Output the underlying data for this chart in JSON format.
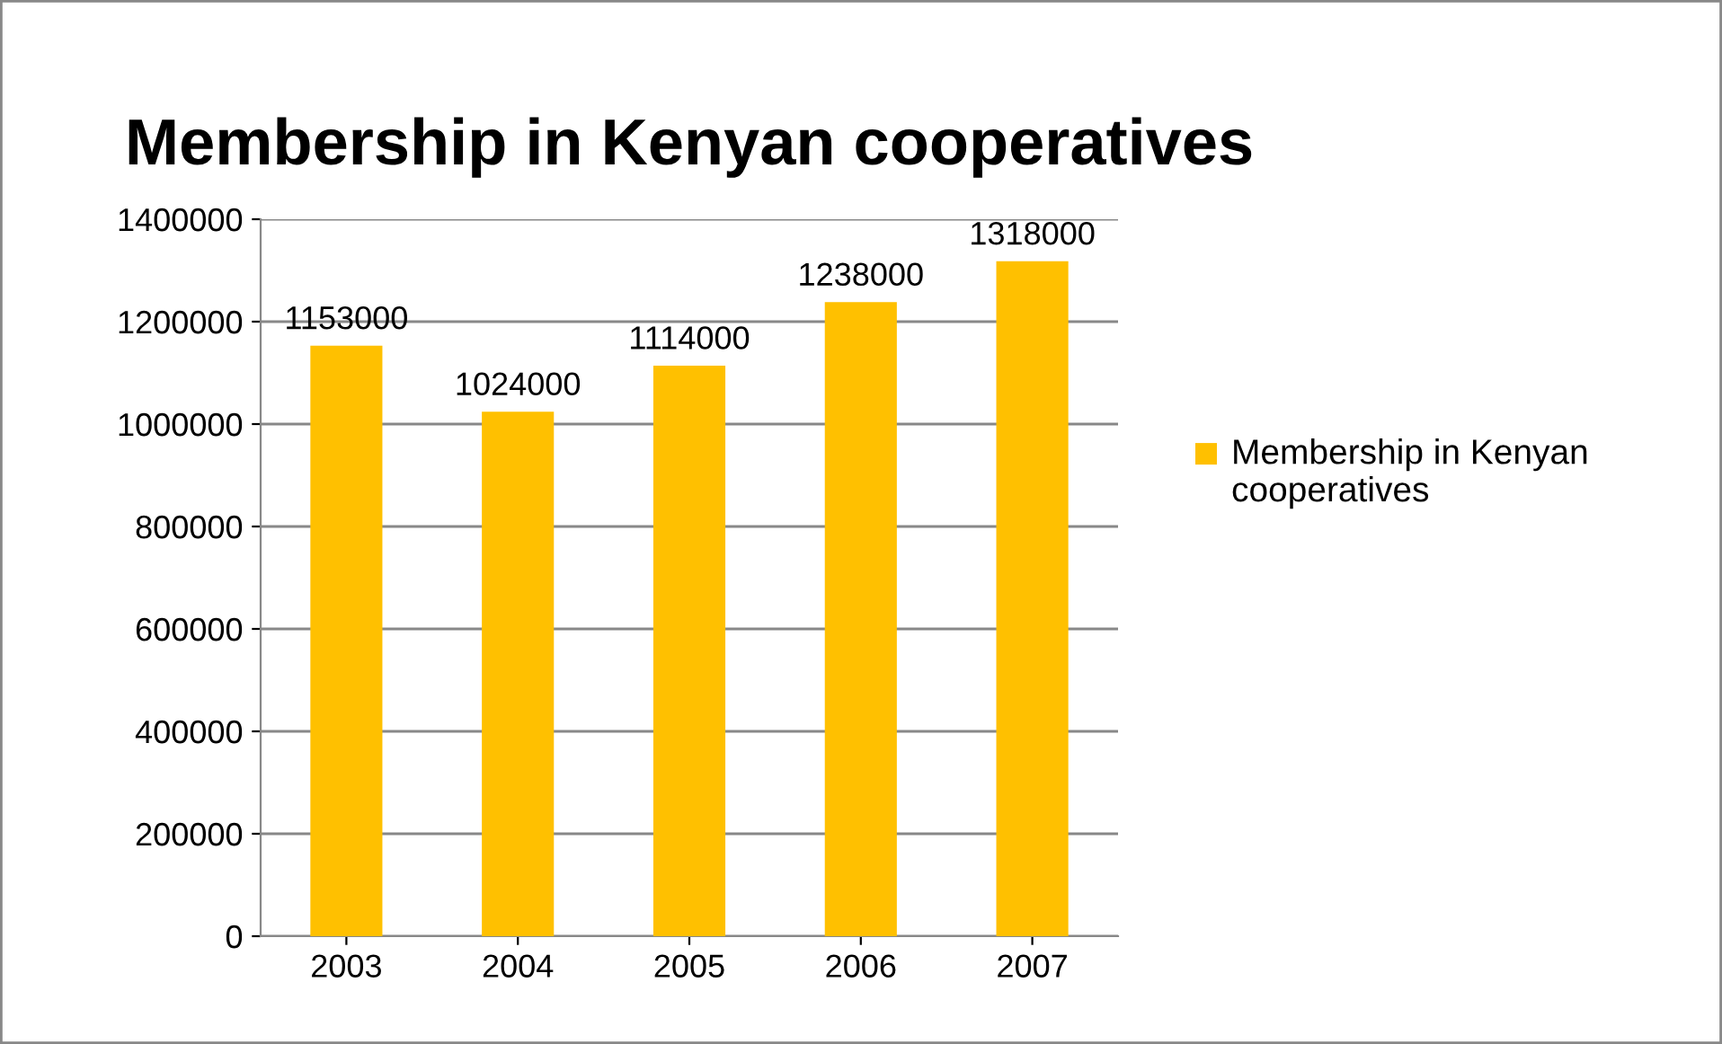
{
  "chart_data": {
    "type": "bar",
    "title": "Membership in Kenyan cooperatives",
    "categories": [
      "2003",
      "2004",
      "2005",
      "2006",
      "2007"
    ],
    "series": [
      {
        "name": "Membership in Kenyan cooperatives",
        "color": "#ffc000",
        "values": [
          1153000,
          1024000,
          1114000,
          1238000,
          1318000
        ]
      }
    ],
    "ylim": [
      0,
      1400000
    ],
    "yticks": [
      0,
      200000,
      400000,
      600000,
      800000,
      1000000,
      1200000,
      1400000
    ],
    "grid": "y",
    "legend": "right",
    "data_labels": true
  }
}
